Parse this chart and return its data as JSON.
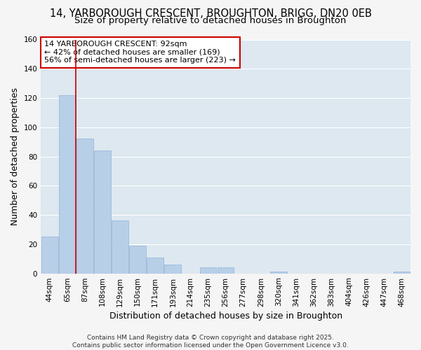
{
  "title_line1": "14, YARBOROUGH CRESCENT, BROUGHTON, BRIGG, DN20 0EB",
  "title_line2": "Size of property relative to detached houses in Broughton",
  "xlabel": "Distribution of detached houses by size in Broughton",
  "ylabel": "Number of detached properties",
  "categories": [
    "44sqm",
    "65sqm",
    "87sqm",
    "108sqm",
    "129sqm",
    "150sqm",
    "171sqm",
    "193sqm",
    "214sqm",
    "235sqm",
    "256sqm",
    "277sqm",
    "298sqm",
    "320sqm",
    "341sqm",
    "362sqm",
    "383sqm",
    "404sqm",
    "426sqm",
    "447sqm",
    "468sqm"
  ],
  "values": [
    25,
    122,
    92,
    84,
    36,
    19,
    11,
    6,
    0,
    4,
    4,
    0,
    0,
    1,
    0,
    0,
    0,
    0,
    0,
    0,
    1
  ],
  "bar_color": "#b8cfe8",
  "bar_edge_color": "#90b4d8",
  "fig_background_color": "#f5f5f5",
  "axes_background_color": "#dde8f0",
  "grid_color": "#ffffff",
  "red_line_index": 2,
  "red_line_color": "#cc0000",
  "annotation_text": "14 YARBOROUGH CRESCENT: 92sqm\n← 42% of detached houses are smaller (169)\n56% of semi-detached houses are larger (223) →",
  "annotation_box_facecolor": "#ffffff",
  "annotation_box_edgecolor": "#cc0000",
  "ylim": [
    0,
    160
  ],
  "yticks": [
    0,
    20,
    40,
    60,
    80,
    100,
    120,
    140,
    160
  ],
  "footer": "Contains HM Land Registry data © Crown copyright and database right 2025.\nContains public sector information licensed under the Open Government Licence v3.0.",
  "title_fontsize": 10.5,
  "subtitle_fontsize": 9.5,
  "axis_label_fontsize": 9,
  "tick_fontsize": 7.5,
  "annotation_fontsize": 8,
  "footer_fontsize": 6.5
}
